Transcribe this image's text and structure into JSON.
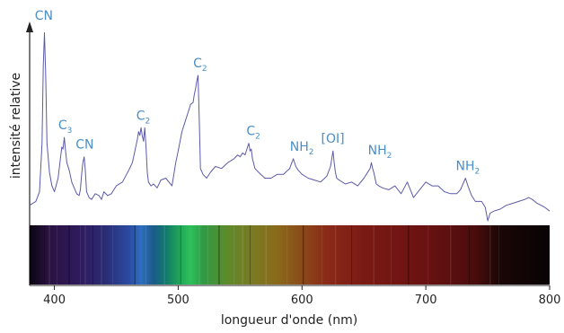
{
  "chart_data": {
    "type": "line",
    "title": "",
    "xlabel": "longueur d'onde (nm)",
    "ylabel": "intensité relative",
    "xlim": [
      380,
      800
    ],
    "ylim": [
      0,
      1
    ],
    "xticks": [
      400,
      500,
      600,
      700,
      800
    ],
    "grid": false,
    "legend": "none",
    "series": [
      {
        "color": "#5b5aa8",
        "x": [
          380,
          385,
          388,
          390,
          391,
          392,
          393,
          394,
          396,
          398,
          400,
          403,
          405,
          406,
          407,
          408,
          409,
          410,
          412,
          414,
          416,
          418,
          420,
          421,
          422,
          423,
          424,
          425,
          426,
          428,
          430,
          433,
          436,
          438,
          440,
          443,
          446,
          450,
          455,
          460,
          463,
          465,
          467,
          468,
          469,
          470,
          471,
          472,
          473,
          474,
          475,
          476,
          478,
          480,
          483,
          486,
          490,
          495,
          498,
          500,
          503,
          506,
          508,
          510,
          512,
          513,
          514,
          515,
          516,
          517,
          518,
          520,
          523,
          526,
          530,
          535,
          540,
          545,
          548,
          550,
          552,
          554,
          556,
          557,
          558,
          559,
          560,
          562,
          565,
          570,
          575,
          580,
          585,
          590,
          593,
          595,
          597,
          600,
          605,
          610,
          615,
          620,
          623,
          624,
          625,
          626,
          627,
          628,
          630,
          635,
          640,
          645,
          650,
          655,
          656,
          657,
          658,
          659,
          660,
          662,
          665,
          670,
          675,
          680,
          685,
          690,
          695,
          700,
          705,
          710,
          715,
          720,
          725,
          728,
          730,
          732,
          734,
          737,
          740,
          745,
          748,
          750,
          752,
          755,
          760,
          765,
          770,
          775,
          780,
          783,
          786,
          790,
          793,
          796,
          800
        ],
        "values": [
          0.08,
          0.1,
          0.15,
          0.4,
          0.8,
          0.97,
          0.75,
          0.4,
          0.25,
          0.18,
          0.15,
          0.22,
          0.33,
          0.38,
          0.37,
          0.43,
          0.36,
          0.3,
          0.26,
          0.2,
          0.17,
          0.14,
          0.13,
          0.16,
          0.24,
          0.3,
          0.33,
          0.26,
          0.15,
          0.12,
          0.11,
          0.14,
          0.13,
          0.11,
          0.15,
          0.13,
          0.14,
          0.18,
          0.2,
          0.26,
          0.3,
          0.36,
          0.42,
          0.46,
          0.44,
          0.48,
          0.44,
          0.41,
          0.48,
          0.38,
          0.25,
          0.2,
          0.18,
          0.19,
          0.17,
          0.21,
          0.22,
          0.18,
          0.3,
          0.36,
          0.46,
          0.52,
          0.56,
          0.6,
          0.61,
          0.65,
          0.68,
          0.72,
          0.75,
          0.52,
          0.27,
          0.24,
          0.22,
          0.25,
          0.28,
          0.27,
          0.3,
          0.32,
          0.34,
          0.33,
          0.35,
          0.34,
          0.38,
          0.4,
          0.36,
          0.37,
          0.32,
          0.27,
          0.25,
          0.22,
          0.22,
          0.24,
          0.24,
          0.27,
          0.32,
          0.28,
          0.26,
          0.24,
          0.22,
          0.21,
          0.2,
          0.23,
          0.28,
          0.32,
          0.36,
          0.3,
          0.25,
          0.22,
          0.21,
          0.19,
          0.2,
          0.18,
          0.22,
          0.27,
          0.3,
          0.27,
          0.25,
          0.22,
          0.19,
          0.18,
          0.17,
          0.16,
          0.18,
          0.14,
          0.2,
          0.12,
          0.16,
          0.2,
          0.18,
          0.18,
          0.15,
          0.14,
          0.14,
          0.16,
          0.19,
          0.22,
          0.18,
          0.13,
          0.1,
          0.1,
          0.07,
          0.0,
          0.04,
          0.05,
          0.06,
          0.08,
          0.09,
          0.1,
          0.11,
          0.12,
          0.11,
          0.09,
          0.08,
          0.07,
          0.05
        ]
      }
    ],
    "annotations": [
      {
        "main": "CN",
        "sub": "",
        "x": 390
      },
      {
        "main": "C",
        "sub": "3",
        "x": 406
      },
      {
        "main": "CN",
        "sub": "",
        "x": 423
      },
      {
        "main": "C",
        "sub": "2",
        "x": 469
      },
      {
        "main": "C",
        "sub": "2",
        "x": 515
      },
      {
        "main": "C",
        "sub": "2",
        "x": 558
      },
      {
        "main": "NH",
        "sub": "2",
        "x": 596
      },
      {
        "main": "[OI]",
        "sub": "",
        "x": 627
      },
      {
        "main": "NH",
        "sub": "2",
        "x": 659
      },
      {
        "main": "NH",
        "sub": "2",
        "x": 730
      }
    ],
    "color_band": {
      "description_stops": [
        {
          "x": 380,
          "color": "#0a0510"
        },
        {
          "x": 395,
          "color": "#2a1240"
        },
        {
          "x": 420,
          "color": "#2f1a5e"
        },
        {
          "x": 440,
          "color": "#2a2b72"
        },
        {
          "x": 460,
          "color": "#2b4aa0"
        },
        {
          "x": 470,
          "color": "#2f6fc0"
        },
        {
          "x": 480,
          "color": "#1b5b8a"
        },
        {
          "x": 490,
          "color": "#127a6a"
        },
        {
          "x": 500,
          "color": "#1fa25a"
        },
        {
          "x": 510,
          "color": "#2fc05a"
        },
        {
          "x": 520,
          "color": "#2f9a45"
        },
        {
          "x": 540,
          "color": "#5e8a2a"
        },
        {
          "x": 560,
          "color": "#7a7a22"
        },
        {
          "x": 580,
          "color": "#8a6a1a"
        },
        {
          "x": 600,
          "color": "#8a4a1a"
        },
        {
          "x": 620,
          "color": "#8a2a18"
        },
        {
          "x": 650,
          "color": "#7a1a14"
        },
        {
          "x": 700,
          "color": "#6a1212"
        },
        {
          "x": 740,
          "color": "#4a0c0c"
        },
        {
          "x": 760,
          "color": "#1a0606"
        },
        {
          "x": 800,
          "color": "#080303"
        }
      ],
      "lines": [
        392,
        396,
        402,
        412,
        421,
        425,
        431,
        438,
        447,
        465,
        474,
        489,
        502,
        517,
        524,
        533,
        545,
        552,
        558,
        571,
        588,
        601,
        616,
        627,
        640,
        658,
        672,
        686,
        702,
        720,
        735,
        752,
        759
      ]
    }
  }
}
